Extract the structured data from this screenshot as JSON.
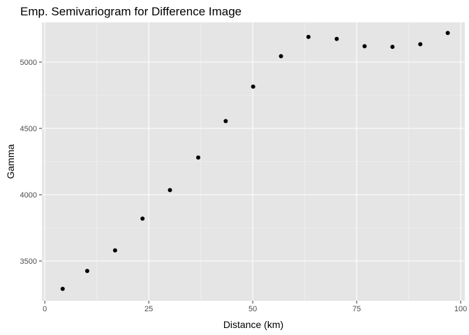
{
  "chart_data": {
    "type": "scatter",
    "title": "Emp. Semivariogram for Difference Image",
    "xlabel": "Distance (km)",
    "ylabel": "Gamma",
    "xlim": [
      -0.7,
      101
    ],
    "ylim": [
      3200,
      5300
    ],
    "x_ticks": [
      0,
      25,
      50,
      75,
      100
    ],
    "x_tick_labels": [
      "0",
      "25",
      "50",
      "75",
      "100"
    ],
    "y_ticks": [
      3500,
      4000,
      4500,
      5000
    ],
    "y_tick_labels": [
      "3500",
      "4000",
      "4500",
      "5000"
    ],
    "grid": true,
    "legend": "none",
    "points": [
      {
        "x": 4.3,
        "y": 3290
      },
      {
        "x": 10.2,
        "y": 3425
      },
      {
        "x": 16.9,
        "y": 3580
      },
      {
        "x": 23.5,
        "y": 3820
      },
      {
        "x": 30.1,
        "y": 4035
      },
      {
        "x": 36.9,
        "y": 4280
      },
      {
        "x": 43.5,
        "y": 4555
      },
      {
        "x": 50.1,
        "y": 4815
      },
      {
        "x": 56.8,
        "y": 5045
      },
      {
        "x": 63.4,
        "y": 5190
      },
      {
        "x": 70.2,
        "y": 5175
      },
      {
        "x": 76.9,
        "y": 5120
      },
      {
        "x": 83.6,
        "y": 5115
      },
      {
        "x": 90.3,
        "y": 5135
      },
      {
        "x": 96.9,
        "y": 5220
      }
    ]
  },
  "colors": {
    "panel_background": "#e5e5e5",
    "grid_major": "#ffffff",
    "grid_minor": "#f2f2f2",
    "point": "#000000",
    "tick_text": "#4d4d4d",
    "tick_mark": "#333333"
  }
}
